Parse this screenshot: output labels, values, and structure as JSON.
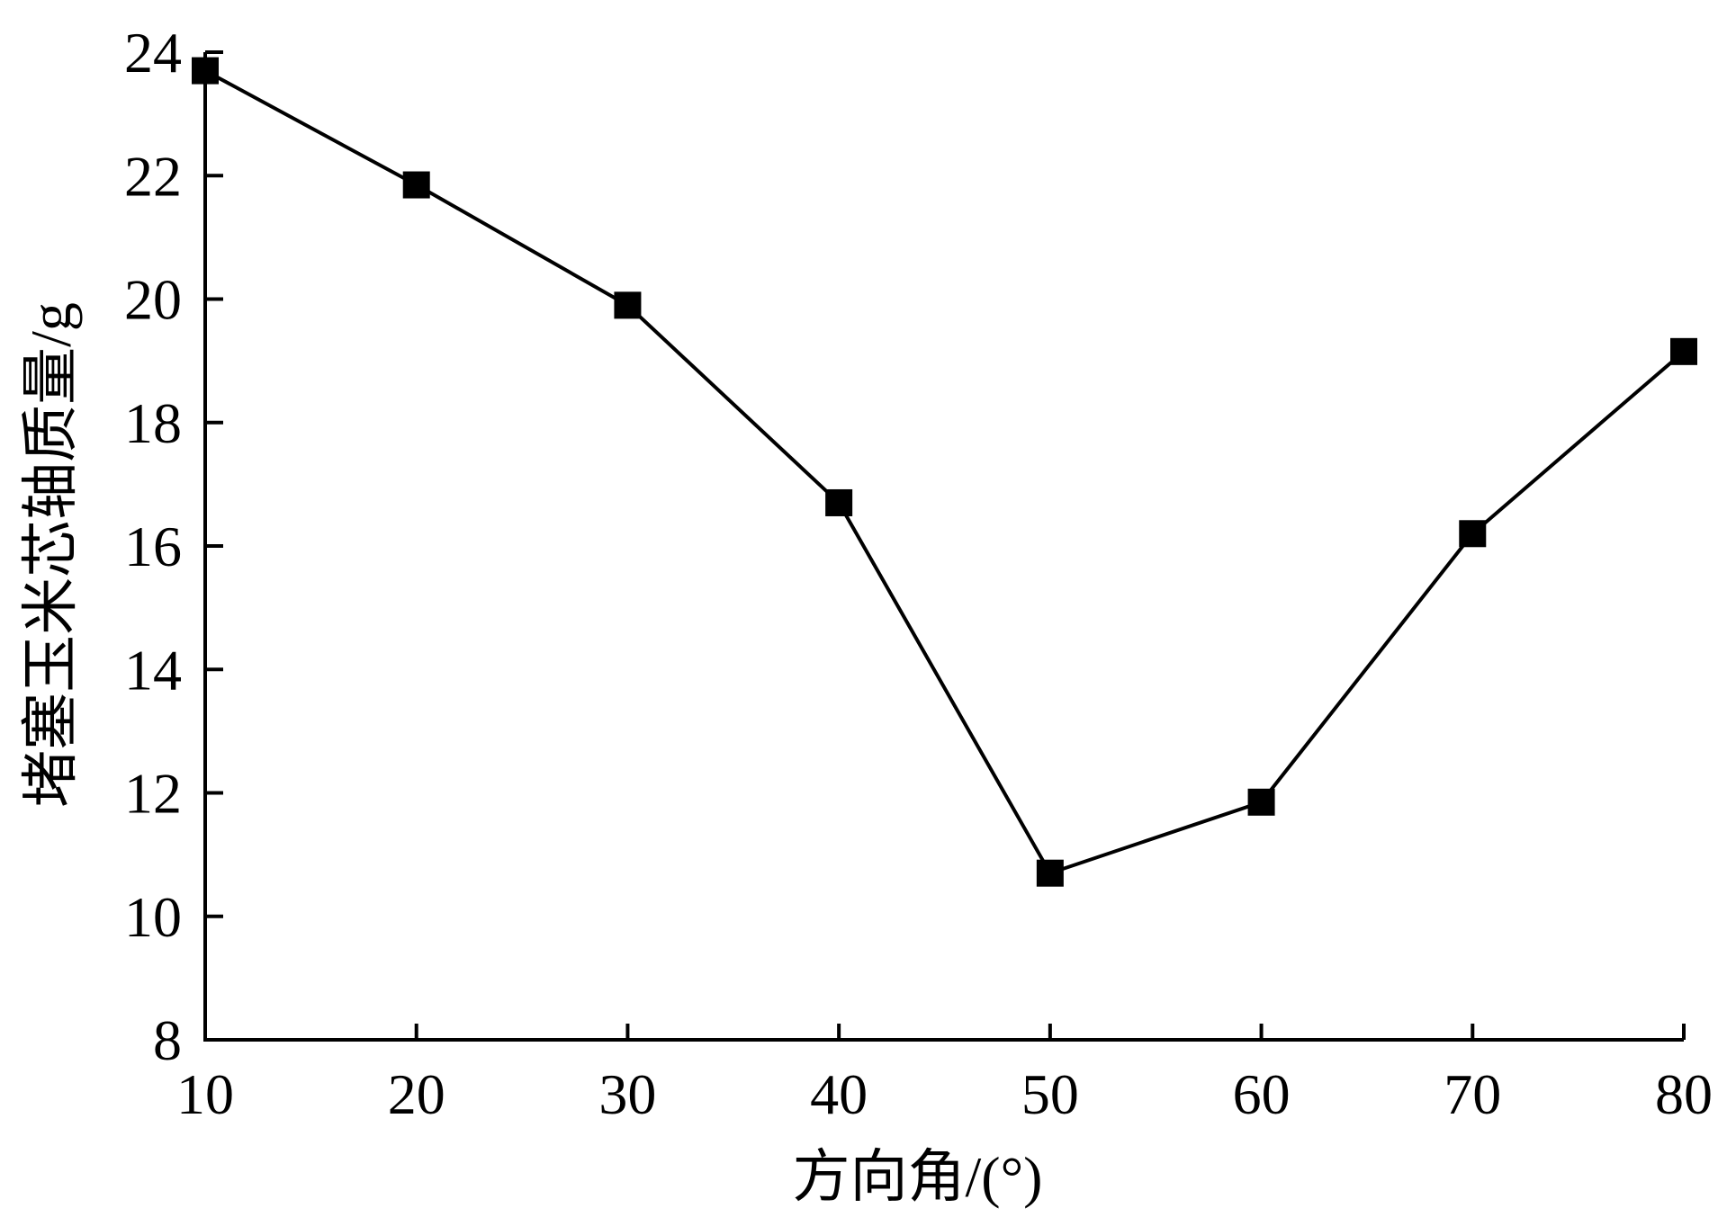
{
  "chart_data": {
    "type": "line",
    "title": "",
    "xlabel": "方向角/(°)",
    "ylabel": "堵塞玉米芯轴质量/g",
    "xlim": [
      10,
      80
    ],
    "ylim": [
      8,
      24
    ],
    "xticks": [
      10,
      20,
      30,
      40,
      50,
      60,
      70,
      80
    ],
    "yticks": [
      8,
      10,
      12,
      14,
      16,
      18,
      20,
      22,
      24
    ],
    "grid": false,
    "legend": "none",
    "marker": "square",
    "series": [
      {
        "x": [
          10,
          20,
          30,
          40,
          50,
          60,
          70,
          80
        ],
        "y": [
          23.7,
          21.85,
          19.9,
          16.7,
          10.7,
          11.85,
          16.2,
          19.15
        ]
      }
    ]
  },
  "colors": {
    "line": "#000000",
    "marker": "#000000",
    "axis": "#000000",
    "background": "#ffffff"
  }
}
